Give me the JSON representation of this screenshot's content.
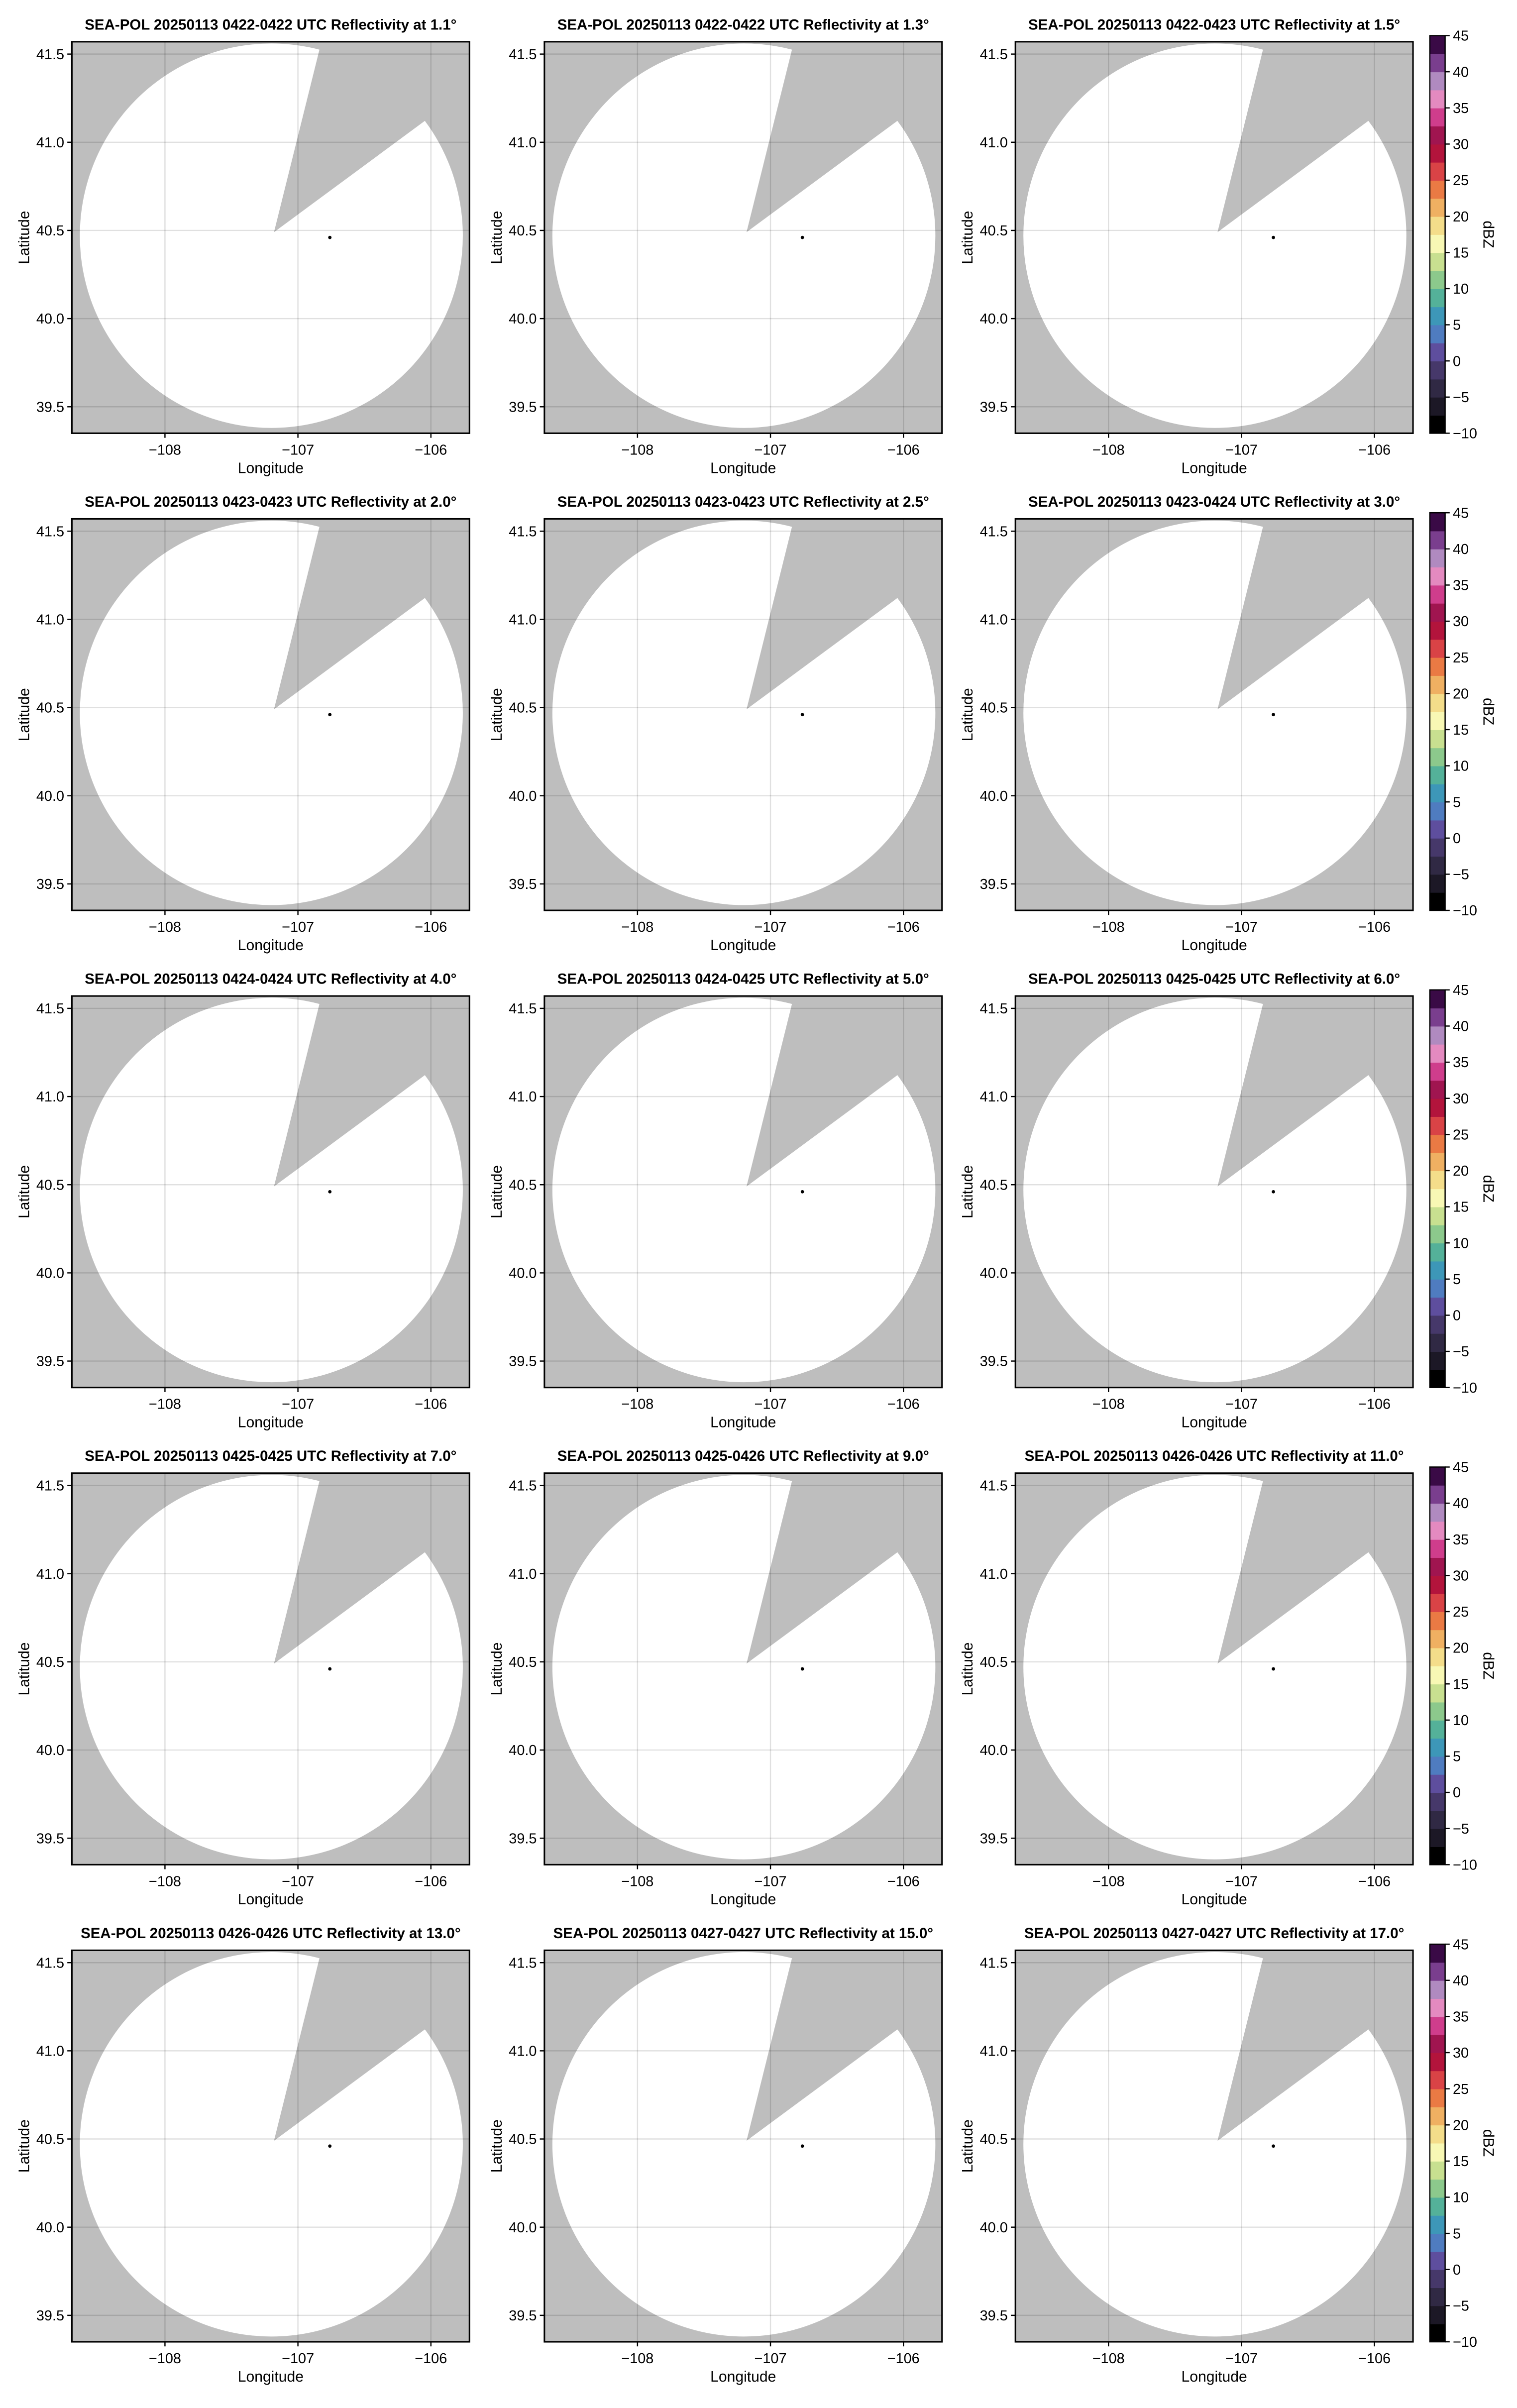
{
  "chart_data": {
    "type": "heatmap",
    "layout": "5 rows x 3 columns of radar PPI map panels",
    "panels": [
      {
        "title": "SEA-POL 20250113 0422-0422 UTC Reflectivity at 1.1°"
      },
      {
        "title": "SEA-POL 20250113 0422-0422 UTC Reflectivity at 1.3°"
      },
      {
        "title": "SEA-POL 20250113 0422-0423 UTC Reflectivity at 1.5°"
      },
      {
        "title": "SEA-POL 20250113 0423-0423 UTC Reflectivity at 2.0°"
      },
      {
        "title": "SEA-POL 20250113 0423-0423 UTC Reflectivity at 2.5°"
      },
      {
        "title": "SEA-POL 20250113 0423-0424 UTC Reflectivity at 3.0°"
      },
      {
        "title": "SEA-POL 20250113 0424-0424 UTC Reflectivity at 4.0°"
      },
      {
        "title": "SEA-POL 20250113 0424-0425 UTC Reflectivity at 5.0°"
      },
      {
        "title": "SEA-POL 20250113 0425-0425 UTC Reflectivity at 6.0°"
      },
      {
        "title": "SEA-POL 20250113 0425-0425 UTC Reflectivity at 7.0°"
      },
      {
        "title": "SEA-POL 20250113 0425-0426 UTC Reflectivity at 9.0°"
      },
      {
        "title": "SEA-POL 20250113 0426-0426 UTC Reflectivity at 11.0°"
      },
      {
        "title": "SEA-POL 20250113 0426-0426 UTC Reflectivity at 13.0°"
      },
      {
        "title": "SEA-POL 20250113 0427-0427 UTC Reflectivity at 15.0°"
      },
      {
        "title": "SEA-POL 20250113 0427-0427 UTC Reflectivity at 17.0°"
      }
    ],
    "xlabel": "Longitude",
    "ylabel": "Latitude",
    "xlim": [
      -108.7,
      -105.71
    ],
    "ylim": [
      39.35,
      41.57
    ],
    "xticks": [
      -108,
      -107,
      -106
    ],
    "xtick_labels": [
      "−108",
      "−107",
      "−106"
    ],
    "yticks": [
      39.5,
      40.0,
      40.5,
      41.0,
      41.5
    ],
    "ytick_labels": [
      "39.5",
      "40.0",
      "40.5",
      "41.0",
      "41.5"
    ],
    "grid": true,
    "background_color": "#bebebe",
    "coverage_color": "#ffffff",
    "coverage": {
      "center": [
        -107.2,
        40.47
      ],
      "radius_lon": 1.44,
      "radius_lat": 1.09,
      "blocked_sector_apex": [
        -107.18,
        40.49
      ],
      "blocked_sector_edges": [
        [
          -106.84,
          41.52
        ],
        [
          -106.03,
          41.13
        ]
      ]
    },
    "site_marker": [
      -106.76,
      40.46
    ],
    "colorbar": {
      "label": "dBZ",
      "range": [
        -10,
        45
      ],
      "ticks": [
        -10,
        -5,
        0,
        5,
        10,
        15,
        20,
        25,
        30,
        35,
        40,
        45
      ],
      "tick_labels": [
        "−10",
        "−5",
        "0",
        "5",
        "10",
        "15",
        "20",
        "25",
        "30",
        "35",
        "40",
        "45"
      ],
      "colors": [
        "#000000",
        "#1c1826",
        "#302944",
        "#46386a",
        "#5e4e9e",
        "#4f7cc0",
        "#3d97b8",
        "#54b199",
        "#8cc98c",
        "#c8e090",
        "#f8f8b4",
        "#f4dd8a",
        "#efb062",
        "#ea7a44",
        "#d94346",
        "#b3143c",
        "#a01550",
        "#cf3d8c",
        "#e48ac0",
        "#b08ac0",
        "#7a3e8e",
        "#3a0a46"
      ]
    }
  }
}
